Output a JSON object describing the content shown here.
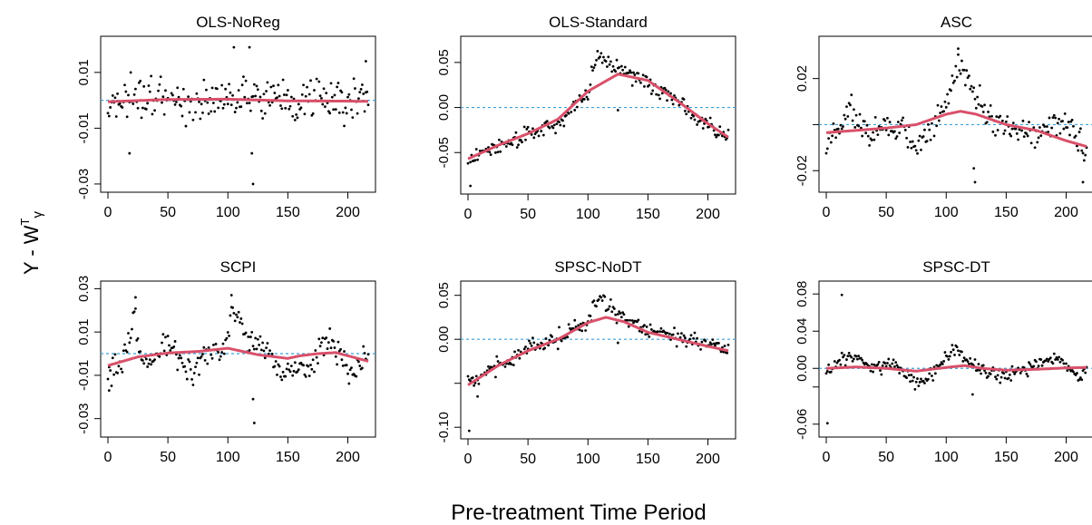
{
  "figure": {
    "ylabel": "Y - W",
    "ylabel_sup": "T",
    "ylabel_sub": "γ",
    "ylabel_hat": "^",
    "xlabel": "Pre-treatment Time Period"
  },
  "colors": {
    "points": "#000000",
    "smooth": "#d9506a",
    "zero_line": "#3aa0d8",
    "axis": "#000000"
  },
  "chart_data": [
    {
      "type": "scatter",
      "title": "OLS-NoReg",
      "xlim": [
        0,
        217
      ],
      "ylim": [
        -0.031,
        0.021
      ],
      "xticks": [
        0,
        50,
        100,
        150,
        200
      ],
      "yticks": [
        -0.03,
        -0.01,
        0.01
      ],
      "ytick_labels": [
        "-0.03",
        "-0.01",
        "0.01"
      ],
      "reference_line": 0,
      "smooth": {
        "x": [
          0,
          50,
          100,
          150,
          200,
          217
        ],
        "y": [
          -0.0005,
          0.0003,
          0.0004,
          -0.0002,
          -0.0003,
          -0.0004
        ]
      },
      "points_profile": {
        "x": [
          0,
          50,
          100,
          150,
          200,
          217
        ],
        "y": [
          0,
          0,
          0,
          0,
          0,
          0
        ]
      },
      "points_spread": 0.006,
      "outliers": [
        {
          "x": 18,
          "y": -0.019
        },
        {
          "x": 105,
          "y": 0.019
        },
        {
          "x": 118,
          "y": 0.019
        },
        {
          "x": 121,
          "y": -0.03
        },
        {
          "x": 215,
          "y": 0.014
        },
        {
          "x": 120,
          "y": -0.019
        }
      ]
    },
    {
      "type": "scatter",
      "title": "OLS-Standard",
      "xlim": [
        0,
        217
      ],
      "ylim": [
        -0.09,
        0.073
      ],
      "xticks": [
        0,
        50,
        100,
        150,
        200
      ],
      "yticks": [
        -0.05,
        0.0,
        0.05
      ],
      "ytick_labels": [
        "-0.05",
        "0.00",
        "0.05"
      ],
      "reference_line": 0,
      "smooth": {
        "x": [
          0,
          25,
          50,
          75,
          100,
          125,
          150,
          175,
          200,
          217
        ],
        "y": [
          -0.057,
          -0.042,
          -0.029,
          -0.013,
          0.018,
          0.037,
          0.03,
          0.007,
          -0.018,
          -0.033
        ]
      },
      "points_profile": {
        "x": [
          0,
          25,
          50,
          75,
          100,
          108,
          125,
          150,
          175,
          200,
          217
        ],
        "y": [
          -0.057,
          -0.043,
          -0.03,
          -0.018,
          0.02,
          0.06,
          0.045,
          0.028,
          0.007,
          -0.02,
          -0.035
        ]
      },
      "points_spread": 0.008,
      "outliers": [
        {
          "x": 2,
          "y": -0.087
        },
        {
          "x": 125,
          "y": -0.003
        }
      ]
    },
    {
      "type": "scatter",
      "title": "ASC",
      "xlim": [
        0,
        217
      ],
      "ylim": [
        -0.027,
        0.036
      ],
      "xticks": [
        0,
        50,
        100,
        150,
        200
      ],
      "yticks": [
        -0.02,
        0.0,
        0.02
      ],
      "ytick_labels": [
        "-0.02",
        "",
        "0.02"
      ],
      "reference_line": 0,
      "smooth": {
        "x": [
          0,
          25,
          50,
          75,
          100,
          112,
          125,
          150,
          175,
          200,
          217
        ],
        "y": [
          -0.0035,
          -0.0025,
          -0.0015,
          0.0,
          0.0045,
          0.0058,
          0.0045,
          0.0,
          -0.0025,
          -0.007,
          -0.0095
        ]
      },
      "points_profile": {
        "x": [
          0,
          20,
          35,
          50,
          75,
          100,
          110,
          125,
          150,
          175,
          200,
          217
        ],
        "y": [
          -0.01,
          0.008,
          -0.005,
          0.0,
          -0.008,
          0.008,
          0.025,
          0.012,
          -0.002,
          -0.004,
          0.002,
          -0.012
        ]
      },
      "points_spread": 0.005,
      "outliers": [
        {
          "x": 110,
          "y": 0.033
        },
        {
          "x": 123,
          "y": -0.019
        },
        {
          "x": 124,
          "y": -0.025
        },
        {
          "x": 214,
          "y": -0.025
        }
      ]
    },
    {
      "type": "scatter",
      "title": "SCPI",
      "xlim": [
        0,
        217
      ],
      "ylim": [
        -0.036,
        0.031
      ],
      "xticks": [
        0,
        50,
        100,
        150,
        200
      ],
      "yticks": [
        -0.03,
        -0.01,
        0.01,
        0.03
      ],
      "ytick_labels": [
        "-0.03",
        "-0.01",
        "0.01",
        "0.03"
      ],
      "reference_line": 0,
      "smooth": {
        "x": [
          0,
          25,
          50,
          75,
          100,
          125,
          150,
          160,
          175,
          190,
          217
        ],
        "y": [
          -0.0055,
          -0.0015,
          0.0003,
          0.001,
          0.0025,
          -0.0005,
          -0.0022,
          -0.001,
          0.0,
          0.0005,
          -0.0035
        ]
      },
      "points_profile": {
        "x": [
          0,
          12,
          22,
          30,
          50,
          70,
          80,
          100,
          104,
          115,
          135,
          150,
          165,
          185,
          200,
          217
        ],
        "y": [
          -0.01,
          -0.005,
          0.018,
          -0.008,
          0.006,
          -0.01,
          -0.002,
          0.004,
          0.022,
          0.008,
          -0.001,
          -0.008,
          -0.01,
          0.009,
          -0.01,
          0.002
        ]
      },
      "points_spread": 0.005,
      "outliers": [
        {
          "x": 23,
          "y": 0.026
        },
        {
          "x": 103,
          "y": 0.027
        },
        {
          "x": 122,
          "y": -0.032
        },
        {
          "x": 121,
          "y": -0.021
        },
        {
          "x": 1,
          "y": -0.017
        }
      ]
    },
    {
      "type": "scatter",
      "title": "SPSC-NoDT",
      "xlim": [
        0,
        217
      ],
      "ylim": [
        -0.107,
        0.06
      ],
      "xticks": [
        0,
        50,
        100,
        150,
        200
      ],
      "yticks": [
        -0.1,
        -0.05,
        0.0,
        0.05
      ],
      "ytick_labels": [
        "-0.10",
        "",
        "0.00",
        "0.05"
      ],
      "reference_line": 0,
      "smooth": {
        "x": [
          0,
          25,
          50,
          75,
          100,
          115,
          130,
          150,
          175,
          200,
          217
        ],
        "y": [
          -0.052,
          -0.03,
          -0.013,
          0.0,
          0.019,
          0.025,
          0.02,
          0.008,
          0.0,
          -0.008,
          -0.013
        ]
      },
      "points_profile": {
        "x": [
          0,
          25,
          50,
          75,
          100,
          108,
          125,
          150,
          175,
          200,
          217
        ],
        "y": [
          -0.05,
          -0.03,
          -0.012,
          0.0,
          0.02,
          0.05,
          0.03,
          0.01,
          0.002,
          -0.005,
          -0.015
        ]
      },
      "points_spread": 0.008,
      "outliers": [
        {
          "x": 1,
          "y": -0.104
        },
        {
          "x": 8,
          "y": -0.065
        },
        {
          "x": 125,
          "y": -0.004
        }
      ]
    },
    {
      "type": "scatter",
      "title": "SPSC-DT",
      "xlim": [
        0,
        217
      ],
      "ylim": [
        -0.068,
        0.088
      ],
      "xticks": [
        0,
        50,
        100,
        150,
        200
      ],
      "yticks": [
        -0.06,
        -0.02,
        0.0,
        0.04,
        0.08
      ],
      "ytick_labels": [
        "-0.06",
        "",
        "0.00",
        "0.04",
        "0.08"
      ],
      "reference_line": 0,
      "smooth": {
        "x": [
          0,
          25,
          50,
          75,
          100,
          115,
          130,
          150,
          175,
          200,
          217
        ],
        "y": [
          0.0,
          0.0015,
          0.0,
          -0.003,
          0.001,
          0.003,
          0.0,
          -0.002,
          -0.001,
          0.0005,
          0.001
        ]
      },
      "points_profile": {
        "x": [
          0,
          20,
          40,
          55,
          75,
          90,
          105,
          120,
          135,
          150,
          170,
          190,
          210,
          217
        ],
        "y": [
          -0.005,
          0.015,
          0.0,
          0.005,
          -0.015,
          -0.005,
          0.022,
          0.008,
          -0.005,
          -0.008,
          0.0,
          0.012,
          -0.008,
          0.0
        ]
      },
      "points_spread": 0.006,
      "outliers": [
        {
          "x": 1,
          "y": -0.059
        },
        {
          "x": 13,
          "y": 0.079
        },
        {
          "x": 122,
          "y": -0.028
        }
      ]
    }
  ]
}
